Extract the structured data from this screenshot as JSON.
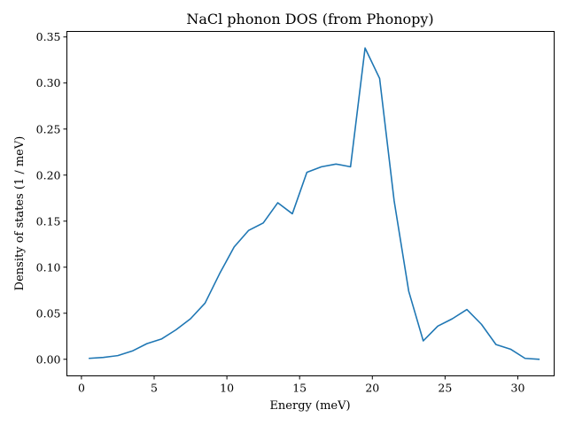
{
  "chart_data": {
    "type": "line",
    "title": "NaCl phonon DOS (from Phonopy)",
    "xlabel": "Energy (meV)",
    "ylabel": "Density of states (1 / meV)",
    "xlim": [
      -1,
      32.5
    ],
    "ylim": [
      -0.018,
      0.356
    ],
    "xticks": [
      0,
      5,
      10,
      15,
      20,
      25,
      30
    ],
    "xtick_labels": [
      "0",
      "5",
      "10",
      "15",
      "20",
      "25",
      "30"
    ],
    "yticks": [
      0.0,
      0.05,
      0.1,
      0.15,
      0.2,
      0.25,
      0.3,
      0.35
    ],
    "ytick_labels": [
      "0.00",
      "0.05",
      "0.10",
      "0.15",
      "0.20",
      "0.25",
      "0.30",
      "0.35"
    ],
    "grid": false,
    "color": "#1f77b4",
    "series": [
      {
        "x": [
          0.5,
          1.5,
          2.5,
          3.5,
          4.5,
          5.5,
          6.5,
          7.5,
          8.5,
          9.5,
          10.5,
          11.5,
          12.5,
          13.5,
          14.5,
          15.5,
          16.5,
          17.5,
          18.5,
          19.5,
          20.5,
          21.5,
          22.5,
          23.5,
          24.5,
          25.5,
          26.5,
          27.5,
          28.5,
          29.5,
          30.5,
          31.5
        ],
        "y": [
          0.001,
          0.002,
          0.004,
          0.009,
          0.017,
          0.022,
          0.032,
          0.044,
          0.061,
          0.093,
          0.122,
          0.14,
          0.148,
          0.17,
          0.158,
          0.203,
          0.209,
          0.212,
          0.209,
          0.338,
          0.305,
          0.172,
          0.074,
          0.02,
          0.036,
          0.044,
          0.054,
          0.038,
          0.016,
          0.011,
          0.001,
          0.0
        ]
      }
    ]
  }
}
